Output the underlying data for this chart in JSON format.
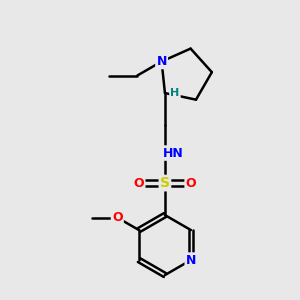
{
  "background_color": "#e8e8e8",
  "atom_colors": {
    "N": "#0000ff",
    "O": "#ff0000",
    "S": "#cccc00",
    "C": "#000000",
    "H_label": "#008080"
  },
  "figsize": [
    3.0,
    3.0
  ],
  "dpi": 100
}
